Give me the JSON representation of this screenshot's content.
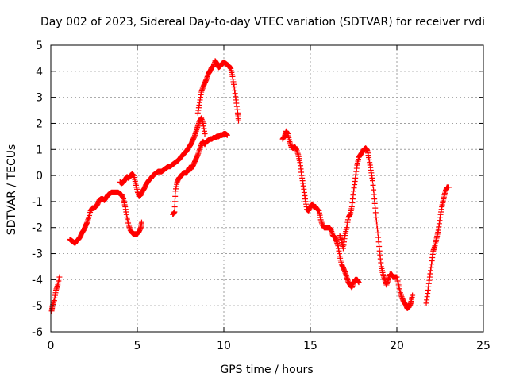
{
  "chart_data": {
    "type": "scatter",
    "title": "Day 002 of 2023, Sidereal Day-to-day VTEC variation (SDTVAR) for receiver rvdi",
    "xlabel": "GPS time / hours",
    "ylabel": "SDTVAR / TECUs",
    "xlim": [
      0,
      25
    ],
    "ylim": [
      -6,
      5
    ],
    "xticks": [
      "0",
      "5",
      "10",
      "15",
      "20",
      "25"
    ],
    "yticks": [
      "-6",
      "-5",
      "-4",
      "-3",
      "-2",
      "-1",
      "0",
      "1",
      "2",
      "3",
      "4",
      "5"
    ],
    "grid": true,
    "marker": "+",
    "color": "#ff0000",
    "segments": [
      [
        [
          0.05,
          -5.2
        ],
        [
          0.1,
          -5.0
        ],
        [
          0.2,
          -4.8
        ],
        [
          0.3,
          -4.4
        ],
        [
          0.4,
          -4.2
        ],
        [
          0.5,
          -3.9
        ]
      ],
      [
        [
          1.1,
          -2.45
        ],
        [
          1.2,
          -2.5
        ],
        [
          1.3,
          -2.55
        ],
        [
          1.4,
          -2.6
        ],
        [
          1.5,
          -2.5
        ],
        [
          1.6,
          -2.45
        ],
        [
          1.7,
          -2.35
        ],
        [
          1.8,
          -2.2
        ],
        [
          1.9,
          -2.1
        ],
        [
          2.0,
          -1.95
        ],
        [
          2.1,
          -1.8
        ],
        [
          2.2,
          -1.6
        ],
        [
          2.3,
          -1.35
        ],
        [
          2.4,
          -1.25
        ],
        [
          2.5,
          -1.25
        ],
        [
          2.6,
          -1.2
        ],
        [
          2.7,
          -1.1
        ],
        [
          2.8,
          -0.95
        ],
        [
          2.9,
          -0.9
        ],
        [
          3.0,
          -0.9
        ],
        [
          3.1,
          -0.95
        ],
        [
          3.2,
          -0.85
        ],
        [
          3.3,
          -0.75
        ],
        [
          3.4,
          -0.7
        ],
        [
          3.5,
          -0.65
        ],
        [
          3.6,
          -0.65
        ],
        [
          3.7,
          -0.65
        ],
        [
          3.8,
          -0.65
        ],
        [
          3.9,
          -0.65
        ],
        [
          4.0,
          -0.7
        ],
        [
          4.1,
          -0.75
        ],
        [
          4.2,
          -0.9
        ],
        [
          4.3,
          -1.2
        ],
        [
          4.4,
          -1.6
        ],
        [
          4.5,
          -1.9
        ],
        [
          4.6,
          -2.1
        ],
        [
          4.7,
          -2.2
        ],
        [
          4.8,
          -2.25
        ],
        [
          4.9,
          -2.25
        ],
        [
          5.0,
          -2.25
        ],
        [
          5.1,
          -2.15
        ],
        [
          5.2,
          -2.0
        ],
        [
          5.25,
          -1.8
        ]
      ],
      [
        [
          4.0,
          -0.25
        ],
        [
          4.1,
          -0.3
        ],
        [
          4.2,
          -0.25
        ],
        [
          4.3,
          -0.15
        ],
        [
          4.4,
          -0.05
        ],
        [
          4.5,
          -0.1
        ],
        [
          4.6,
          0.0
        ],
        [
          4.7,
          0.05
        ],
        [
          4.8,
          0.0
        ],
        [
          4.9,
          -0.3
        ],
        [
          5.0,
          -0.6
        ],
        [
          5.1,
          -0.8
        ],
        [
          5.2,
          -0.75
        ],
        [
          5.3,
          -0.6
        ],
        [
          5.4,
          -0.5
        ],
        [
          5.5,
          -0.35
        ],
        [
          5.6,
          -0.25
        ],
        [
          5.7,
          -0.15
        ],
        [
          5.8,
          -0.1
        ],
        [
          5.9,
          0.0
        ],
        [
          6.0,
          0.05
        ],
        [
          6.1,
          0.1
        ],
        [
          6.2,
          0.15
        ],
        [
          6.3,
          0.15
        ],
        [
          6.4,
          0.15
        ],
        [
          6.5,
          0.2
        ],
        [
          6.6,
          0.25
        ],
        [
          6.7,
          0.3
        ],
        [
          6.8,
          0.35
        ],
        [
          6.9,
          0.35
        ],
        [
          7.0,
          0.4
        ],
        [
          7.1,
          0.45
        ],
        [
          7.2,
          0.5
        ],
        [
          7.3,
          0.55
        ],
        [
          7.4,
          0.6
        ],
        [
          7.5,
          0.7
        ],
        [
          7.6,
          0.75
        ],
        [
          7.7,
          0.85
        ],
        [
          7.8,
          0.9
        ],
        [
          7.9,
          1.0
        ],
        [
          8.0,
          1.1
        ],
        [
          8.1,
          1.2
        ],
        [
          8.2,
          1.35
        ],
        [
          8.3,
          1.5
        ],
        [
          8.4,
          1.7
        ],
        [
          8.5,
          1.9
        ],
        [
          8.6,
          2.1
        ],
        [
          8.7,
          2.2
        ],
        [
          8.8,
          2.0
        ],
        [
          8.9,
          1.6
        ]
      ],
      [
        [
          7.05,
          -1.5
        ],
        [
          7.15,
          -1.4
        ],
        [
          7.2,
          -0.6
        ],
        [
          7.3,
          -0.25
        ],
        [
          7.4,
          -0.1
        ],
        [
          7.5,
          -0.05
        ],
        [
          7.6,
          0.05
        ],
        [
          7.7,
          0.1
        ],
        [
          7.8,
          0.1
        ],
        [
          7.9,
          0.15
        ],
        [
          8.0,
          0.3
        ],
        [
          8.1,
          0.25
        ],
        [
          8.2,
          0.35
        ],
        [
          8.3,
          0.5
        ],
        [
          8.4,
          0.65
        ],
        [
          8.5,
          0.8
        ],
        [
          8.6,
          1.0
        ],
        [
          8.7,
          1.2
        ],
        [
          8.8,
          1.3
        ],
        [
          8.9,
          1.2
        ],
        [
          9.0,
          1.3
        ],
        [
          9.1,
          1.35
        ],
        [
          9.2,
          1.4
        ],
        [
          9.3,
          1.4
        ],
        [
          9.4,
          1.45
        ],
        [
          9.5,
          1.45
        ],
        [
          9.6,
          1.5
        ],
        [
          9.7,
          1.5
        ],
        [
          9.8,
          1.55
        ],
        [
          9.9,
          1.55
        ],
        [
          10.0,
          1.6
        ],
        [
          10.1,
          1.6
        ],
        [
          10.2,
          1.55
        ]
      ],
      [
        [
          8.5,
          2.4
        ],
        [
          8.6,
          2.8
        ],
        [
          8.7,
          3.2
        ],
        [
          8.8,
          3.4
        ],
        [
          8.9,
          3.55
        ],
        [
          9.0,
          3.7
        ],
        [
          9.1,
          3.9
        ],
        [
          9.2,
          4.0
        ],
        [
          9.3,
          4.15
        ],
        [
          9.4,
          4.2
        ],
        [
          9.5,
          4.4
        ],
        [
          9.6,
          4.3
        ],
        [
          9.7,
          4.15
        ],
        [
          9.8,
          4.2
        ],
        [
          9.9,
          4.3
        ],
        [
          10.0,
          4.35
        ],
        [
          10.1,
          4.3
        ],
        [
          10.2,
          4.25
        ],
        [
          10.3,
          4.2
        ],
        [
          10.4,
          4.1
        ],
        [
          10.5,
          3.8
        ],
        [
          10.6,
          3.4
        ],
        [
          10.7,
          2.9
        ],
        [
          10.8,
          2.4
        ],
        [
          10.85,
          2.1
        ]
      ],
      [
        [
          13.4,
          1.4
        ],
        [
          13.5,
          1.5
        ],
        [
          13.6,
          1.7
        ],
        [
          13.7,
          1.6
        ],
        [
          13.8,
          1.3
        ],
        [
          13.9,
          1.1
        ],
        [
          14.0,
          1.05
        ],
        [
          14.1,
          1.1
        ],
        [
          14.2,
          1.0
        ],
        [
          14.3,
          0.8
        ],
        [
          14.4,
          0.5
        ],
        [
          14.5,
          0.0
        ],
        [
          14.6,
          -0.4
        ],
        [
          14.7,
          -0.9
        ],
        [
          14.8,
          -1.3
        ],
        [
          14.9,
          -1.35
        ],
        [
          15.0,
          -1.2
        ],
        [
          15.1,
          -1.1
        ],
        [
          15.2,
          -1.2
        ],
        [
          15.3,
          -1.2
        ],
        [
          15.4,
          -1.3
        ],
        [
          15.5,
          -1.35
        ],
        [
          15.6,
          -1.7
        ],
        [
          15.7,
          -1.9
        ],
        [
          15.8,
          -2.0
        ],
        [
          15.9,
          -2.0
        ],
        [
          16.0,
          -2.0
        ],
        [
          16.1,
          -2.0
        ],
        [
          16.2,
          -2.1
        ],
        [
          16.3,
          -2.3
        ],
        [
          16.4,
          -2.35
        ],
        [
          16.5,
          -2.5
        ],
        [
          16.6,
          -2.7
        ],
        [
          16.7,
          -3.1
        ],
        [
          16.8,
          -3.4
        ],
        [
          16.9,
          -3.55
        ],
        [
          17.0,
          -3.7
        ],
        [
          17.1,
          -3.9
        ],
        [
          17.2,
          -4.1
        ],
        [
          17.3,
          -4.2
        ],
        [
          17.4,
          -4.3
        ],
        [
          17.5,
          -4.1
        ],
        [
          17.6,
          -4.0
        ],
        [
          17.7,
          -4.0
        ],
        [
          17.8,
          -4.1
        ]
      ],
      [
        [
          16.7,
          -2.3
        ],
        [
          16.8,
          -2.5
        ],
        [
          16.9,
          -2.8
        ],
        [
          17.0,
          -2.3
        ],
        [
          17.1,
          -2.0
        ],
        [
          17.2,
          -1.6
        ],
        [
          17.3,
          -1.5
        ],
        [
          17.4,
          -1.2
        ],
        [
          17.5,
          -0.6
        ],
        [
          17.6,
          -0.1
        ],
        [
          17.7,
          0.4
        ],
        [
          17.8,
          0.7
        ],
        [
          17.9,
          0.8
        ],
        [
          18.0,
          0.9
        ],
        [
          18.1,
          1.0
        ],
        [
          18.2,
          1.05
        ],
        [
          18.3,
          0.95
        ],
        [
          18.4,
          0.6
        ],
        [
          18.5,
          0.2
        ],
        [
          18.6,
          -0.2
        ],
        [
          18.7,
          -0.9
        ],
        [
          18.8,
          -1.6
        ],
        [
          18.9,
          -2.2
        ],
        [
          19.0,
          -2.9
        ],
        [
          19.1,
          -3.5
        ],
        [
          19.2,
          -3.8
        ],
        [
          19.3,
          -4.0
        ],
        [
          19.4,
          -4.2
        ],
        [
          19.5,
          -4.0
        ],
        [
          19.6,
          -3.8
        ],
        [
          19.7,
          -3.8
        ],
        [
          19.8,
          -3.9
        ],
        [
          19.9,
          -3.9
        ],
        [
          20.0,
          -3.9
        ],
        [
          20.1,
          -4.2
        ],
        [
          20.2,
          -4.5
        ],
        [
          20.3,
          -4.7
        ],
        [
          20.4,
          -4.85
        ],
        [
          20.5,
          -4.95
        ],
        [
          20.6,
          -5.1
        ],
        [
          20.7,
          -5.05
        ],
        [
          20.8,
          -4.9
        ],
        [
          20.9,
          -4.6
        ]
      ],
      [
        [
          21.7,
          -4.9
        ],
        [
          21.8,
          -4.4
        ],
        [
          21.9,
          -3.9
        ],
        [
          22.0,
          -3.4
        ],
        [
          22.1,
          -2.9
        ],
        [
          22.2,
          -2.7
        ],
        [
          22.3,
          -2.4
        ],
        [
          22.4,
          -2.1
        ],
        [
          22.5,
          -1.6
        ],
        [
          22.6,
          -1.2
        ],
        [
          22.7,
          -0.9
        ],
        [
          22.8,
          -0.6
        ],
        [
          22.9,
          -0.45
        ],
        [
          23.0,
          -0.45
        ]
      ]
    ]
  }
}
